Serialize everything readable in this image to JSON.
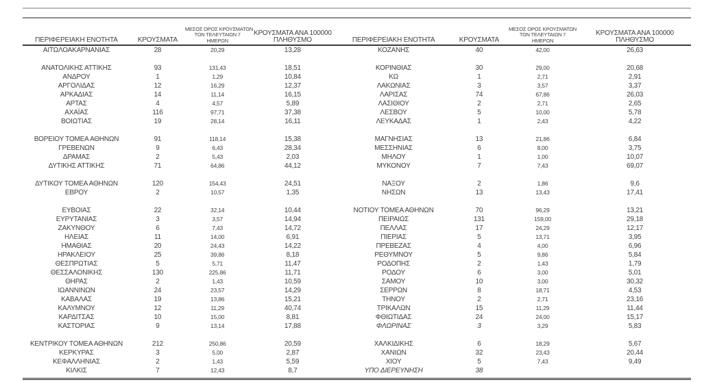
{
  "colors": {
    "text": "#3f3f3f",
    "rule_light": "#b9b9b9",
    "rule_mid": "#8c8c8c",
    "header_underline": "#3a3a3a",
    "bottom_rule": "#1f1f1f",
    "background": "#ffffff"
  },
  "header": {
    "col_region": "ΠΕΡΙΦΕΡΕΙΑΚΗ ΕΝΟΤΗΤΑ",
    "col_cases": "ΚΡΟΥΣΜΑΤΑ",
    "col_avg_line1": "ΜΕΣΟΣ ΟΡΟΣ ΚΡΟΥΣΜΑΤΩΝ",
    "col_avg_line2": "ΤΩΝ ΤΕΛΕΥΤΑΙΩΝ 7",
    "col_avg_line3": "ΗΜΕΡΩΝ",
    "col_per100k_line1": "ΚΡΟΥΣΜΑΤΑ ΑΝΑ 100000",
    "col_per100k_line2": "ΠΛΗΘΥΣΜΟ"
  },
  "table": {
    "rows": [
      {
        "left": {
          "region": "ΑΙΤΩΛΟΑΚΑΡΝΑΝΙΑΣ",
          "cases": "28",
          "avg7": "20,29",
          "per100k": "13,28"
        },
        "right": {
          "region": "ΚΟΖΑΝΗΣ",
          "cases": "40",
          "avg7": "42,00",
          "per100k": "26,63"
        }
      },
      {
        "left": null,
        "right": null
      },
      {
        "left": {
          "region": "ΑΝΑΤΟΛΙΚΗΣ ΑΤΤΙΚΗΣ",
          "cases": "93",
          "avg7": "131,43",
          "per100k": "18,51"
        },
        "right": {
          "region": "ΚΟΡΙΝΘΙΑΣ",
          "cases": "30",
          "avg7": "29,00",
          "per100k": "20,68"
        }
      },
      {
        "left": {
          "region": "ΑΝΔΡΟΥ",
          "cases": "1",
          "avg7": "1,29",
          "per100k": "10,84"
        },
        "right": {
          "region": "ΚΩ",
          "cases": "1",
          "avg7": "2,71",
          "per100k": "2,91"
        }
      },
      {
        "left": {
          "region": "ΑΡΓΟΛΙΔΑΣ",
          "cases": "12",
          "avg7": "16,29",
          "per100k": "12,37"
        },
        "right": {
          "region": "ΛΑΚΩΝΙΑΣ",
          "cases": "3",
          "avg7": "3,57",
          "per100k": "3,37"
        }
      },
      {
        "left": {
          "region": "ΑΡΚΑΔΙΑΣ",
          "cases": "14",
          "avg7": "11,14",
          "per100k": "16,15"
        },
        "right": {
          "region": "ΛΑΡΙΣΑΣ",
          "cases": "74",
          "avg7": "67,86",
          "per100k": "26,03"
        }
      },
      {
        "left": {
          "region": "ΑΡΤΑΣ",
          "cases": "4",
          "avg7": "4,57",
          "per100k": "5,89"
        },
        "right": {
          "region": "ΛΑΣΙΘΙΟΥ",
          "cases": "2",
          "avg7": "2,71",
          "per100k": "2,65"
        }
      },
      {
        "left": {
          "region": "ΑΧΑΪΑΣ",
          "cases": "116",
          "avg7": "97,71",
          "per100k": "37,38"
        },
        "right": {
          "region": "ΛΕΣΒΟΥ",
          "cases": "5",
          "avg7": "10,00",
          "per100k": "5,78"
        }
      },
      {
        "left": {
          "region": "ΒΟΙΩΤΙΑΣ",
          "cases": "19",
          "avg7": "28,14",
          "per100k": "16,11"
        },
        "right": {
          "region": "ΛΕΥΚΑΔΑΣ",
          "cases": "1",
          "avg7": "2,43",
          "per100k": "4,22"
        }
      },
      {
        "left": null,
        "right": null
      },
      {
        "left": {
          "region": "ΒΟΡΕΙΟΥ ΤΟΜΕΑ ΑΘΗΝΩΝ",
          "cases": "91",
          "avg7": "118,14",
          "per100k": "15,38"
        },
        "right": {
          "region": "ΜΑΓΝΗΣΙΑΣ",
          "cases": "13",
          "avg7": "21,86",
          "per100k": "6,84"
        }
      },
      {
        "left": {
          "region": "ΓΡΕΒΕΝΩΝ",
          "cases": "9",
          "avg7": "6,43",
          "per100k": "28,34"
        },
        "right": {
          "region": "ΜΕΣΣΗΝΙΑΣ",
          "cases": "6",
          "avg7": "8,00",
          "per100k": "3,75"
        }
      },
      {
        "left": {
          "region": "ΔΡΑΜΑΣ",
          "cases": "2",
          "avg7": "5,43",
          "per100k": "2,03"
        },
        "right": {
          "region": "ΜΗΛΟΥ",
          "cases": "1",
          "avg7": "1,00",
          "per100k": "10,07"
        }
      },
      {
        "left": {
          "region": "ΔΥΤΙΚΗΣ ΑΤΤΙΚΗΣ",
          "cases": "71",
          "avg7": "64,86",
          "per100k": "44,12"
        },
        "right": {
          "region": "ΜΥΚΟΝΟΥ",
          "cases": "7",
          "avg7": "7,43",
          "per100k": "69,07"
        }
      },
      {
        "left": null,
        "right": null
      },
      {
        "left": {
          "region": "ΔΥΤΙΚΟΥ ΤΟΜΕΑ ΑΘΗΝΩΝ",
          "cases": "120",
          "avg7": "154,43",
          "per100k": "24,51"
        },
        "right": {
          "region": "ΝΑΞΟΥ",
          "cases": "2",
          "avg7": "1,86",
          "per100k": "9,6"
        }
      },
      {
        "left": {
          "region": "ΕΒΡΟΥ",
          "cases": "2",
          "avg7": "10,57",
          "per100k": "1,35"
        },
        "right": {
          "region": "ΝΗΣΩΝ",
          "cases": "13",
          "avg7": "13,43",
          "per100k": "17,41"
        }
      },
      {
        "left": null,
        "right": null
      },
      {
        "left": {
          "region": "ΕΥΒΟΙΑΣ",
          "cases": "22",
          "avg7": "32,14",
          "per100k": "10,44"
        },
        "right": {
          "region": "ΝΟΤΙΟΥ ΤΟΜΕΑ ΑΘΗΝΩΝ",
          "cases": "70",
          "avg7": "96,29",
          "per100k": "13,21"
        }
      },
      {
        "left": {
          "region": "ΕΥΡΥΤΑΝΙΑΣ",
          "cases": "3",
          "avg7": "3,57",
          "per100k": "14,94"
        },
        "right": {
          "region": "ΠΕΙΡΑΙΩΣ",
          "cases": "131",
          "avg7": "159,00",
          "per100k": "29,18"
        }
      },
      {
        "left": {
          "region": "ΖΑΚΥΝΘΟΥ",
          "cases": "6",
          "avg7": "7,43",
          "per100k": "14,72"
        },
        "right": {
          "region": "ΠΕΛΛΑΣ",
          "cases": "17",
          "avg7": "24,29",
          "per100k": "12,17"
        }
      },
      {
        "left": {
          "region": "ΗΛΕΙΑΣ",
          "cases": "11",
          "avg7": "14,00",
          "per100k": "6,91"
        },
        "right": {
          "region": "ΠΙΕΡΙΑΣ",
          "cases": "5",
          "avg7": "13,71",
          "per100k": "3,95"
        }
      },
      {
        "left": {
          "region": "ΗΜΑΘΙΑΣ",
          "cases": "20",
          "avg7": "24,43",
          "per100k": "14,22"
        },
        "right": {
          "region": "ΠΡΕΒΕΖΑΣ",
          "cases": "4",
          "avg7": "4,00",
          "per100k": "6,96"
        }
      },
      {
        "left": {
          "region": "ΗΡΑΚΛΕΙΟΥ",
          "cases": "25",
          "avg7": "39,86",
          "per100k": "8,18"
        },
        "right": {
          "region": "ΡΕΘΥΜΝΟΥ",
          "cases": "5",
          "avg7": "9,86",
          "per100k": "5,84"
        }
      },
      {
        "left": {
          "region": "ΘΕΣΠΡΩΤΙΑΣ",
          "cases": "5",
          "avg7": "5,71",
          "per100k": "11,47"
        },
        "right": {
          "region": "ΡΟΔΟΠΗΣ",
          "cases": "2",
          "avg7": "1,43",
          "per100k": "1,79"
        }
      },
      {
        "left": {
          "region": "ΘΕΣΣΑΛΟΝΙΚΗΣ",
          "cases": "130",
          "avg7": "225,86",
          "per100k": "11,71"
        },
        "right": {
          "region": "ΡΟΔΟΥ",
          "cases": "6",
          "avg7": "3,00",
          "per100k": "5,01"
        }
      },
      {
        "left": {
          "region": "ΘΗΡΑΣ",
          "cases": "2",
          "avg7": "1,43",
          "per100k": "10,59"
        },
        "right": {
          "region": "ΣΑΜΟΥ",
          "cases": "10",
          "avg7": "3,00",
          "per100k": "30,32"
        }
      },
      {
        "left": {
          "region": "ΙΩΑΝΝΙΝΩΝ",
          "cases": "24",
          "avg7": "23,57",
          "per100k": "14,29"
        },
        "right": {
          "region": "ΣΕΡΡΩΝ",
          "cases": "8",
          "avg7": "18,71",
          "per100k": "4,53"
        }
      },
      {
        "left": {
          "region": "ΚΑΒΑΛΑΣ",
          "cases": "19",
          "avg7": "13,86",
          "per100k": "15,21"
        },
        "right": {
          "region": "ΤΗΝΟΥ",
          "cases": "2",
          "avg7": "2,71",
          "per100k": "23,16"
        }
      },
      {
        "left": {
          "region": "ΚΑΛΥΜΝΟΥ",
          "cases": "12",
          "avg7": "11,29",
          "per100k": "40,74"
        },
        "right": {
          "region": "ΤΡΙΚΑΛΩΝ",
          "cases": "15",
          "avg7": "11,29",
          "per100k": "11,44"
        }
      },
      {
        "left": {
          "region": "ΚΑΡΔΙΤΣΑΣ",
          "cases": "10",
          "avg7": "15,00",
          "per100k": "8,81"
        },
        "right": {
          "region": "ΦΘΙΩΤΙΔΑΣ",
          "cases": "24",
          "avg7": "24,00",
          "per100k": "15,17"
        }
      },
      {
        "left": {
          "region": "ΚΑΣΤΟΡΙΑΣ",
          "cases": "9",
          "avg7": "13,14",
          "per100k": "17,88"
        },
        "right": {
          "region": "ΦΛΩΡΙΝΑΣ",
          "cases": "3",
          "avg7": "3,29",
          "per100k": "5,83",
          "italic": true
        }
      },
      {
        "left": null,
        "right": null
      },
      {
        "left": {
          "region": "ΚΕΝΤΡΙΚΟΥ ΤΟΜΕΑ ΑΘΗΝΩΝ",
          "cases": "212",
          "avg7": "250,86",
          "per100k": "20,59"
        },
        "right": {
          "region": "ΧΑΛΚΙΔΙΚΗΣ",
          "cases": "6",
          "avg7": "18,29",
          "per100k": "5,67"
        }
      },
      {
        "left": {
          "region": "ΚΕΡΚΥΡΑΣ",
          "cases": "3",
          "avg7": "5,00",
          "per100k": "2,87"
        },
        "right": {
          "region": "ΧΑΝΙΩΝ",
          "cases": "32",
          "avg7": "23,43",
          "per100k": "20,44"
        }
      },
      {
        "left": {
          "region": "ΚΕΦΑΛΛΗΝΙΑΣ",
          "cases": "2",
          "avg7": "1,43",
          "per100k": "5,59"
        },
        "right": {
          "region": "ΧΙΟΥ",
          "cases": "5",
          "avg7": "7,43",
          "per100k": "9,49"
        }
      },
      {
        "left": {
          "region": "ΚΙΛΚΙΣ",
          "cases": "7",
          "avg7": "12,43",
          "per100k": "8,7"
        },
        "right": {
          "region": "ΥΠΟ ΔΙΕΡΕΥΝΗΣΗ",
          "cases": "38",
          "avg7": "",
          "per100k": "",
          "italic": true
        }
      }
    ]
  }
}
